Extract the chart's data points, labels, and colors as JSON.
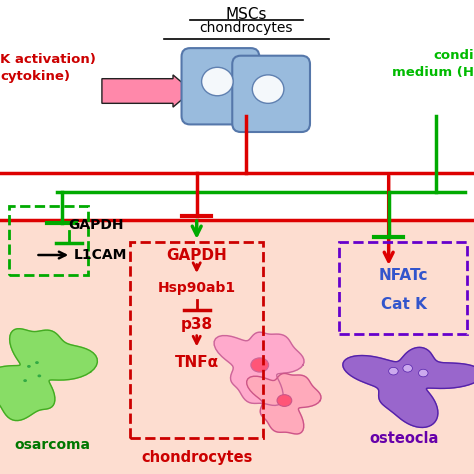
{
  "bg_color": "#FFFFFF",
  "pink_region_color": "#FDDDD0",
  "msc_label": "MSCs",
  "chondrocytes_label": "chondrocytes",
  "left_text1": "K activation)",
  "left_text2": "cytokine)",
  "left_text_color": "#CC0000",
  "conditioned_text1": "condi",
  "conditioned_text2": "medium (H",
  "conditioned_color": "#00BB00",
  "red_color": "#DD0000",
  "green_color": "#00AA00",
  "center_box_color": "#CC0000",
  "right_box_color": "#6600CC",
  "left_dashed_color": "#00AA00",
  "center_gapdh": "GAPDH",
  "center_hsp": "Hsp90ab1",
  "center_p38": "p38",
  "center_tnf": "TNFα",
  "right_nfat": "NFATc",
  "right_catk": "Cat K",
  "bottom_chondrocytes": "chondrocytes",
  "bottom_osteocla": "osteocla",
  "bottom_osarcoma": "osarcoma",
  "gapdh_left": "GAPDH",
  "l1cam": "L1CAM"
}
